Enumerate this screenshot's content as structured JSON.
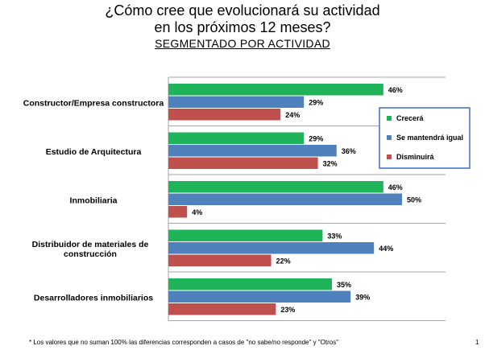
{
  "title_line1": "¿Cómo cree que evolucionará su actividad",
  "title_line2": "en los próximos 12 meses?",
  "subtitle": "SEGMENTADO POR ACTIVIDAD",
  "footnote": "* Los valores que no suman 100% las diferencias corresponden a casos de \"no sabe/no responde\" y \"Otros\"",
  "page_number": "1",
  "chart_data": {
    "type": "bar",
    "orientation": "horizontal",
    "title": "¿Cómo cree que evolucionará su actividad en los próximos 12 meses?",
    "subtitle": "SEGMENTADO POR ACTIVIDAD",
    "categories": [
      "Constructor/Empresa constructora",
      "Estudio de Arquitectura",
      "Inmobiliaria",
      "Distribuidor de materiales de construcción",
      "Desarrolladores inmobiliarios"
    ],
    "category_lines": [
      [
        "Constructor/Empresa constructora"
      ],
      [
        "Estudio de Arquitectura"
      ],
      [
        "Inmobiliaria"
      ],
      [
        "Distribuidor de materiales de",
        "construcción"
      ],
      [
        "Desarrolladores inmobiliarios"
      ]
    ],
    "series": [
      {
        "name": "Crecerá",
        "color": "#1fb45a",
        "values": [
          46,
          29,
          46,
          33,
          35
        ]
      },
      {
        "name": "Se mantendrá igual",
        "color": "#4f81bd",
        "values": [
          29,
          36,
          50,
          44,
          39
        ]
      },
      {
        "name": "Disminuirá",
        "color": "#c0504d",
        "values": [
          24,
          32,
          4,
          22,
          23
        ]
      }
    ],
    "value_suffix": "%",
    "xlim": [
      0,
      55
    ],
    "grid": "horizontal separators",
    "legend": "right"
  }
}
